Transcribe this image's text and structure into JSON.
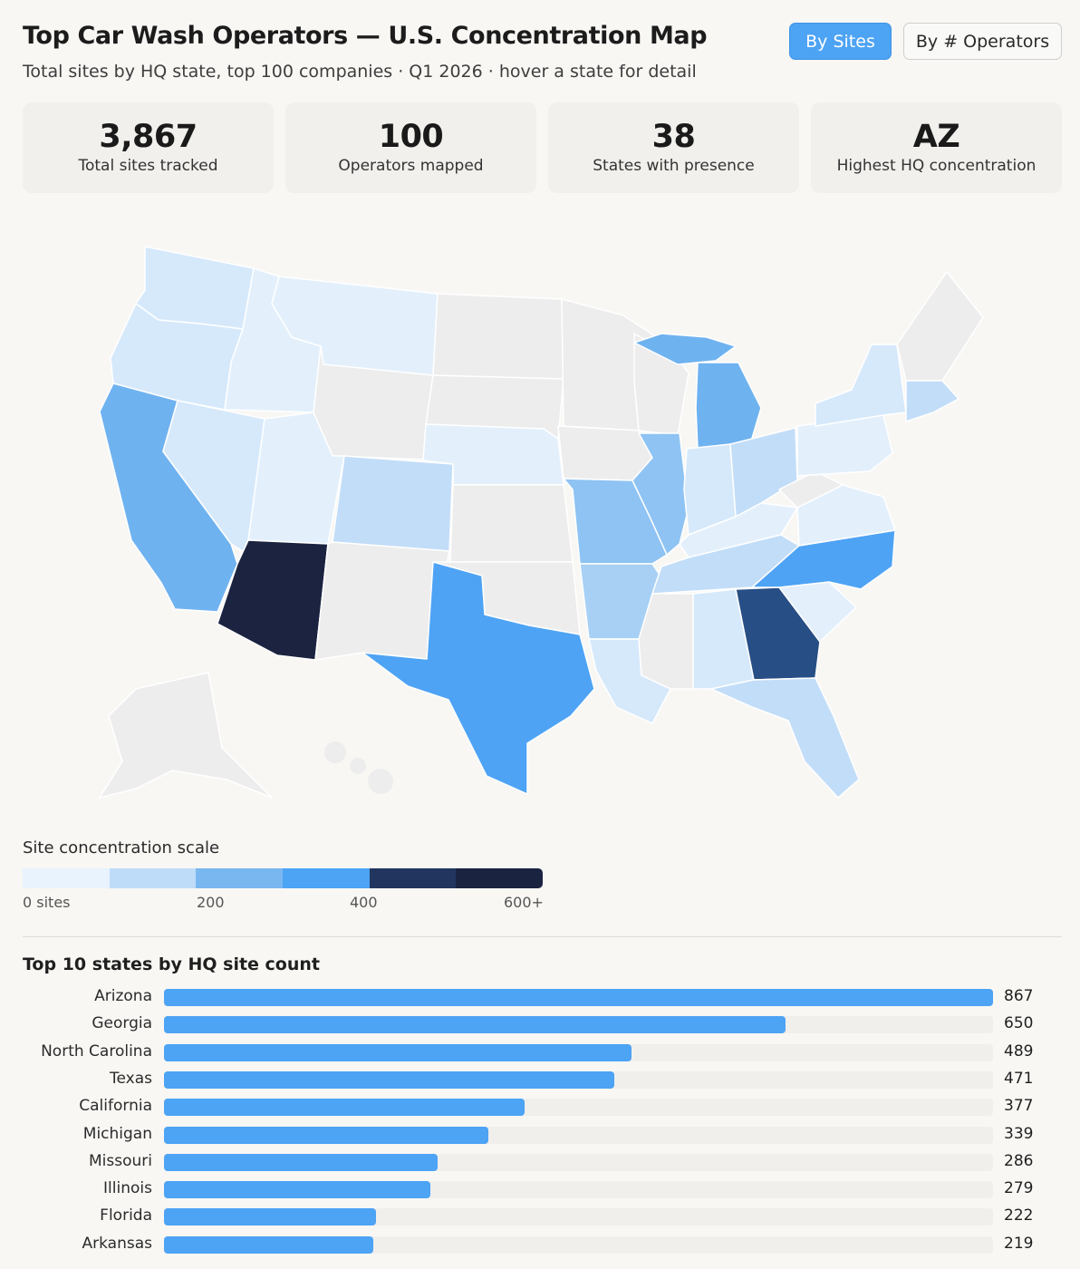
{
  "header": {
    "title": "Top Car Wash Operators — U.S. Concentration Map",
    "subtitle": "Total sites by HQ state, top 100 companies · Q1 2026 · hover a state for detail",
    "toggle_sites": "By Sites",
    "toggle_operators": "By # Operators"
  },
  "stats": [
    {
      "value": "3,867",
      "label": "Total sites tracked"
    },
    {
      "value": "100",
      "label": "Operators mapped"
    },
    {
      "value": "38",
      "label": "States with presence"
    },
    {
      "value": "AZ",
      "label": "Highest HQ concentration"
    }
  ],
  "scale": {
    "title": "Site concentration scale",
    "labels": [
      "0 sites",
      "200",
      "400",
      "600+"
    ],
    "colors": [
      "#e8f3fd",
      "#bedcf7",
      "#79b7f0",
      "#4da3f4",
      "#22355e",
      "#1a2340"
    ]
  },
  "colors": {
    "accent": "#4da3f4",
    "no_data": "#ededed",
    "arizona": "#1b2340",
    "georgia": "#274e85"
  },
  "chart_data": [
    {
      "type": "heatmap",
      "title": "",
      "note": "Choropleth of sites by HQ state",
      "states": [
        {
          "state": "AZ",
          "value": 867
        },
        {
          "state": "GA",
          "value": 650
        },
        {
          "state": "NC",
          "value": 489
        },
        {
          "state": "TX",
          "value": 471
        },
        {
          "state": "CA",
          "value": 377
        },
        {
          "state": "MI",
          "value": 339
        },
        {
          "state": "MO",
          "value": 286
        },
        {
          "state": "IL",
          "value": 279
        },
        {
          "state": "FL",
          "value": 222
        },
        {
          "state": "AR",
          "value": 219
        }
      ]
    },
    {
      "type": "bar",
      "title": "Top 10 states by HQ site count",
      "categories": [
        "Arizona",
        "Georgia",
        "North Carolina",
        "Texas",
        "California",
        "Michigan",
        "Missouri",
        "Illinois",
        "Florida",
        "Arkansas"
      ],
      "values": [
        867,
        650,
        489,
        471,
        377,
        339,
        286,
        279,
        222,
        219
      ],
      "xlim": [
        0,
        867
      ]
    }
  ]
}
